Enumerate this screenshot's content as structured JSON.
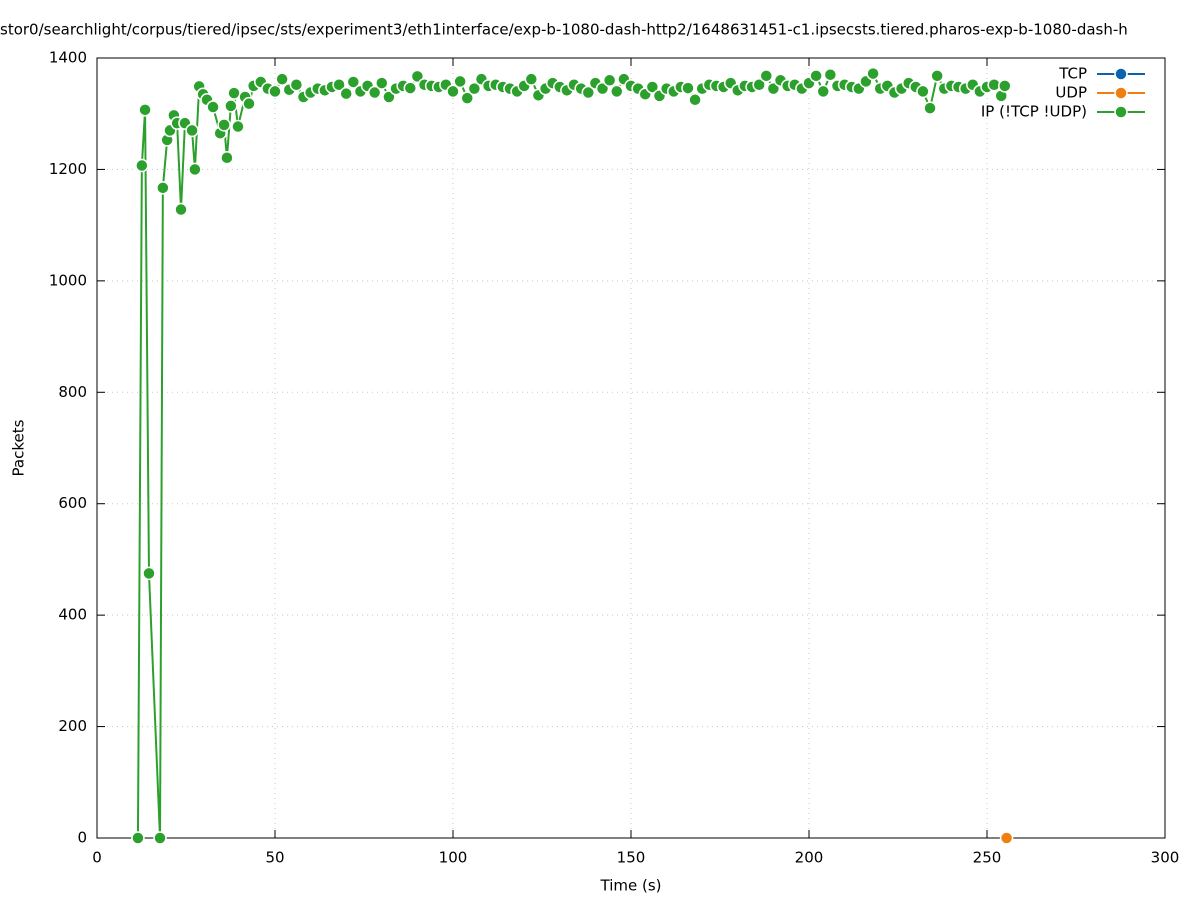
{
  "chart_data": {
    "type": "line",
    "title": "stor0/searchlight/corpus/tiered/ipsec/sts/experiment3/eth1interface/exp-b-1080-dash-http2/1648631451-c1.ipsecsts.tiered.pharos-exp-b-1080-dash-h",
    "x_label": "Time (s)",
    "y_label": "Packets",
    "xlim": [
      0,
      300
    ],
    "xticks": [
      0,
      50,
      100,
      150,
      200,
      250,
      300
    ],
    "ylim": [
      0,
      1400
    ],
    "yticks": [
      0,
      200,
      400,
      600,
      800,
      1000,
      1200,
      1400
    ],
    "grid": true,
    "legend": "top-right",
    "series": [
      {
        "name": "TCP",
        "color": "#0a64ad",
        "x": [],
        "values": []
      },
      {
        "name": "UDP",
        "color": "#f07f12",
        "x": [
          255.5
        ],
        "values": [
          0
        ]
      },
      {
        "name": "IP (!TCP  !UDP)",
        "color": "#2ca02c",
        "x": [
          11.5,
          12.6,
          13.5,
          14.6,
          17.7,
          18.5,
          19.7,
          20.5,
          21.6,
          22.5,
          23.6,
          24.7,
          26.7,
          27.5,
          28.7,
          29.8,
          30.9,
          32.6,
          34.6,
          35.7,
          36.5,
          37.6,
          38.5,
          39.6,
          41.6,
          42.7,
          44,
          46,
          48,
          50,
          52,
          54,
          56,
          58,
          60,
          62,
          64,
          66,
          68,
          70,
          72,
          74,
          76,
          78,
          80,
          82,
          84,
          86,
          88,
          90,
          92,
          94,
          96,
          98,
          100,
          102,
          104,
          106,
          108,
          110,
          112,
          114,
          116,
          118,
          120,
          122,
          124,
          126,
          128,
          130,
          132,
          134,
          136,
          138,
          140,
          142,
          144,
          146,
          148,
          150,
          152,
          154,
          156,
          158,
          160,
          162,
          164,
          166,
          168,
          170,
          172,
          174,
          176,
          178,
          180,
          182,
          184,
          186,
          188,
          190,
          192,
          194,
          196,
          198,
          200,
          202,
          204,
          206,
          208,
          210,
          212,
          214,
          216,
          218,
          220,
          222,
          224,
          226,
          228,
          230,
          232,
          234,
          236,
          238,
          240,
          242,
          244,
          246,
          248,
          250,
          252,
          254,
          255
        ],
        "values": [
          0,
          1207,
          1307,
          475,
          0,
          1167,
          1253,
          1270,
          1297,
          1283,
          1128,
          1283,
          1270,
          1200,
          1349,
          1335,
          1325,
          1312,
          1265,
          1280,
          1221,
          1314,
          1337,
          1277,
          1330,
          1318,
          1350,
          1357,
          1345,
          1340,
          1362,
          1343,
          1352,
          1330,
          1338,
          1345,
          1342,
          1348,
          1352,
          1336,
          1357,
          1340,
          1350,
          1338,
          1355,
          1330,
          1345,
          1350,
          1346,
          1367,
          1352,
          1350,
          1348,
          1352,
          1340,
          1358,
          1328,
          1345,
          1362,
          1350,
          1352,
          1348,
          1345,
          1340,
          1350,
          1362,
          1333,
          1345,
          1355,
          1348,
          1342,
          1352,
          1345,
          1338,
          1355,
          1345,
          1360,
          1340,
          1362,
          1350,
          1345,
          1335,
          1348,
          1332,
          1345,
          1340,
          1348,
          1346,
          1325,
          1345,
          1352,
          1350,
          1348,
          1355,
          1342,
          1350,
          1348,
          1352,
          1368,
          1345,
          1360,
          1350,
          1352,
          1345,
          1355,
          1368,
          1340,
          1370,
          1350,
          1352,
          1348,
          1345,
          1358,
          1372,
          1345,
          1350,
          1338,
          1345,
          1355,
          1348,
          1340,
          1310,
          1368,
          1345,
          1350,
          1348,
          1345,
          1352,
          1340,
          1348,
          1352,
          1332,
          1350
        ]
      }
    ]
  }
}
